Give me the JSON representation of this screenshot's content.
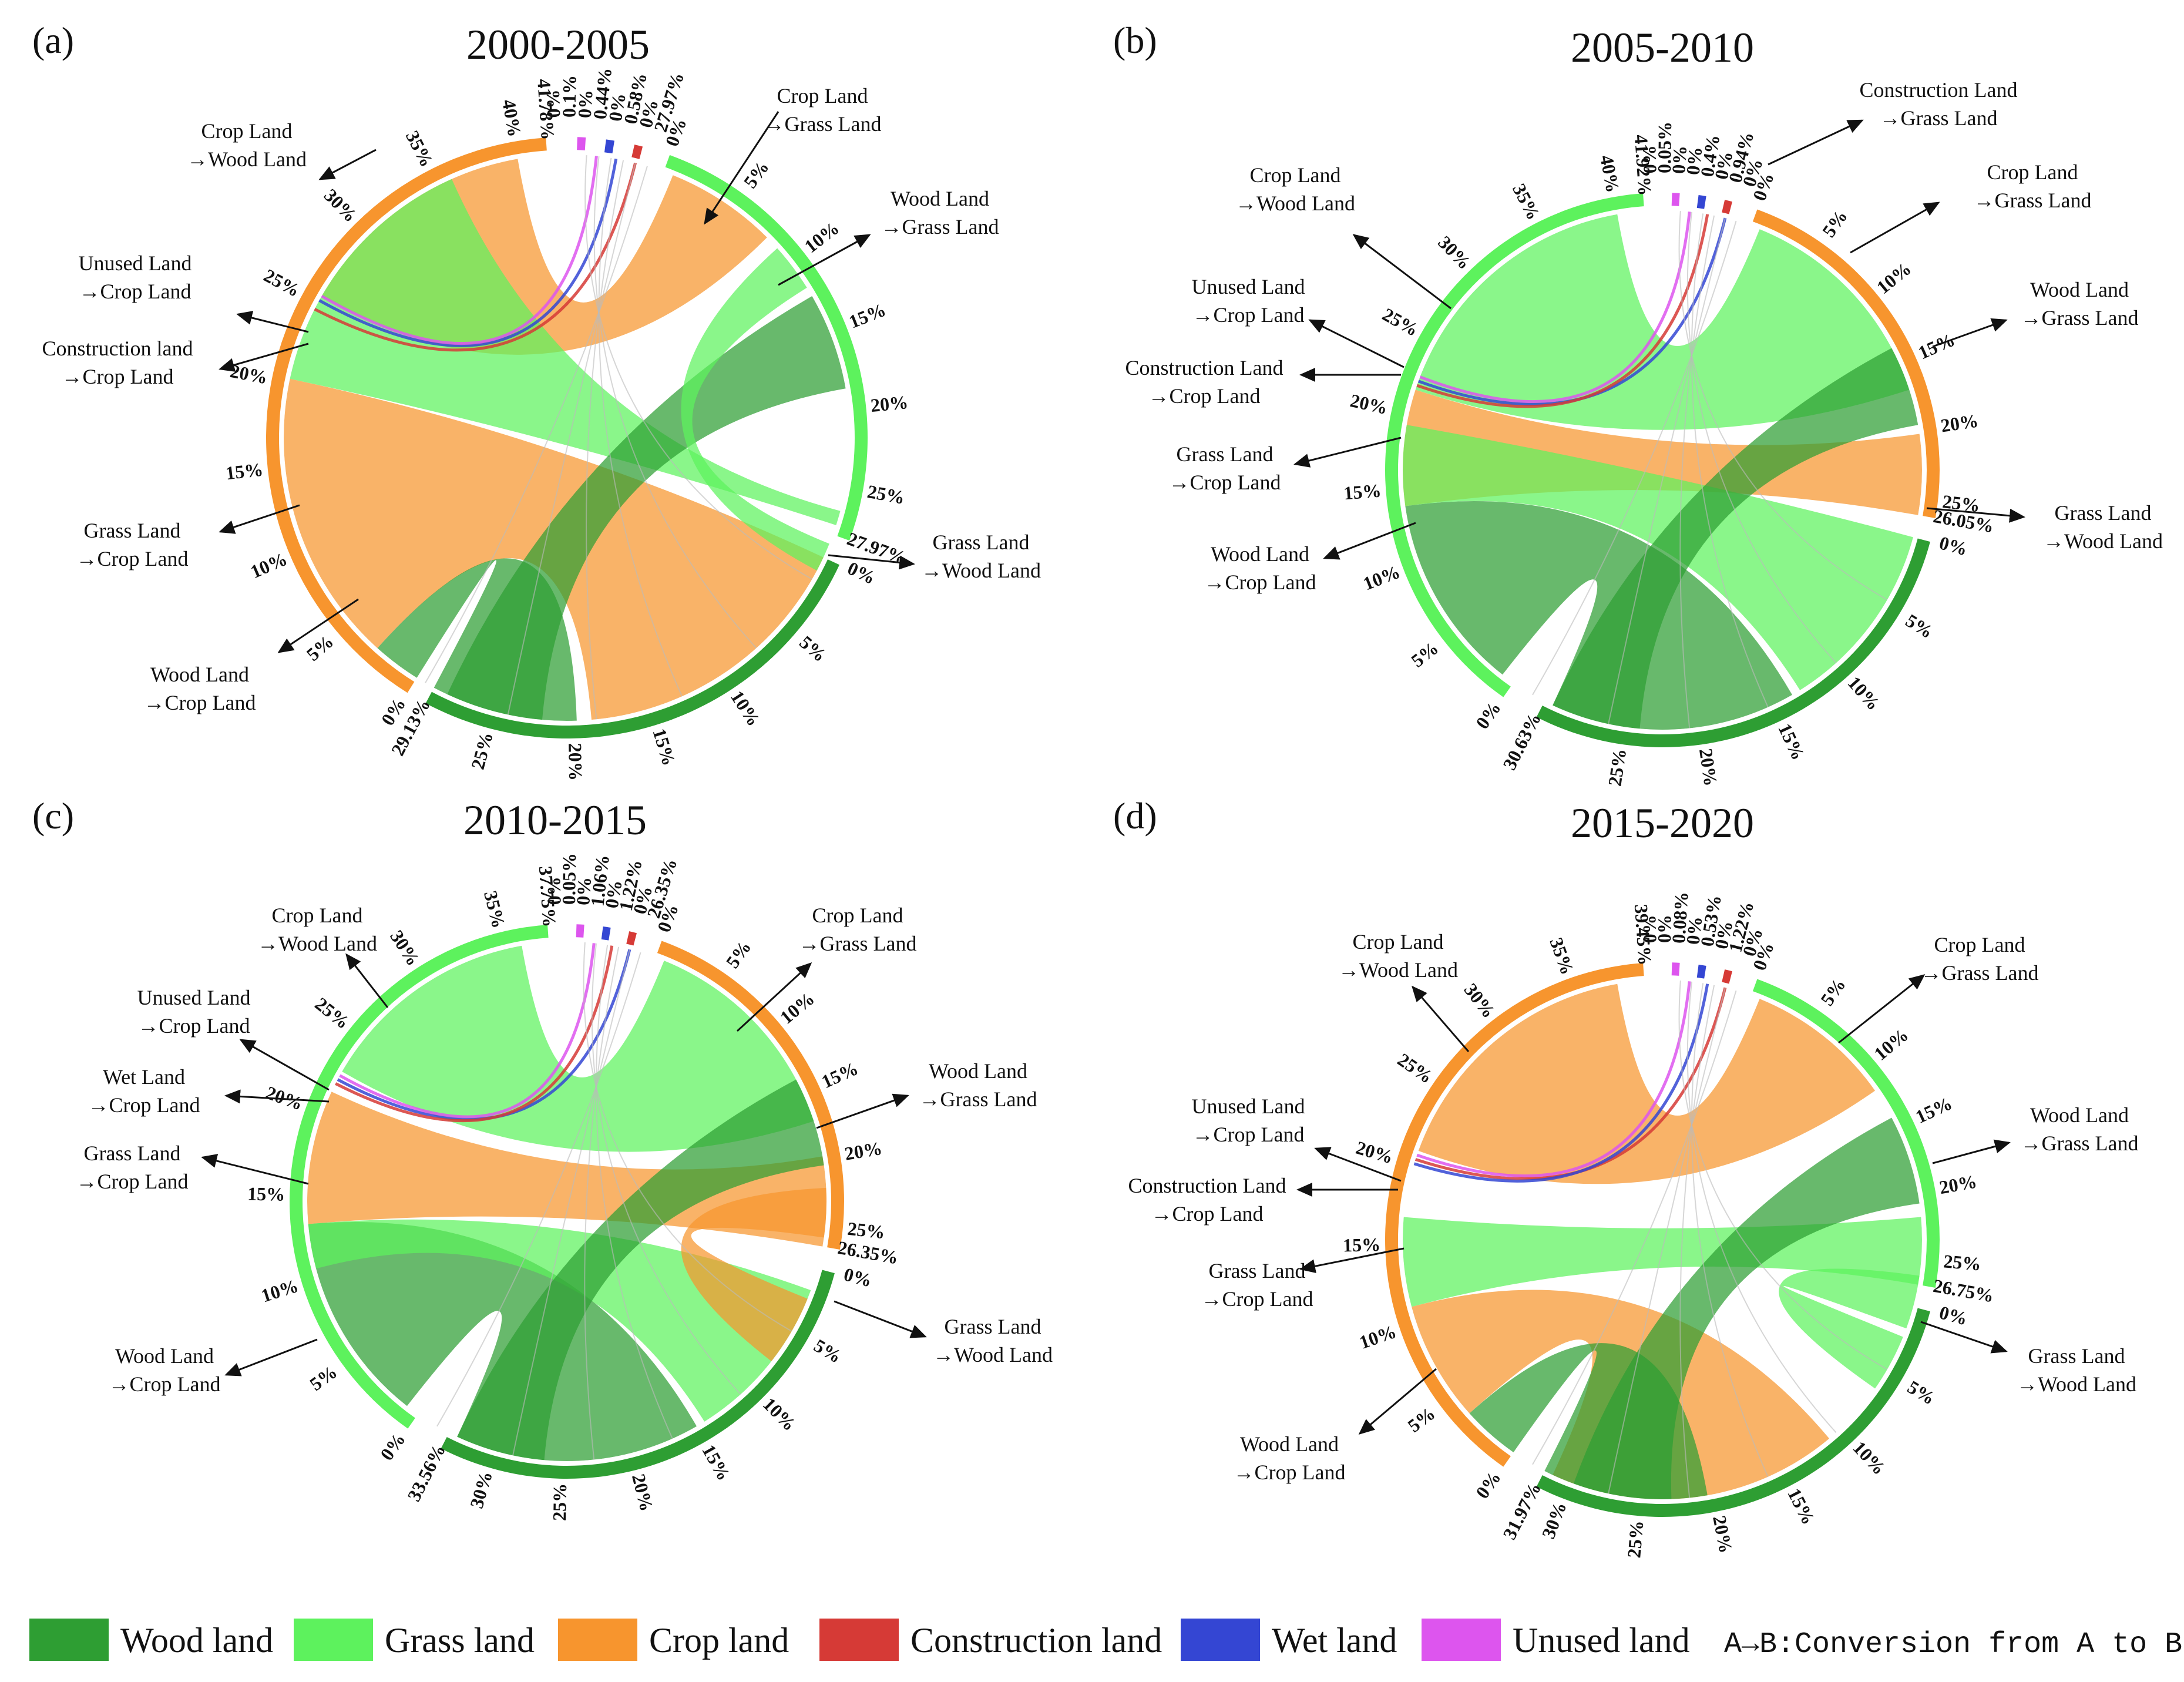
{
  "chart_data": [
    {
      "type": "chord",
      "panel_label": "(a)",
      "title": "2000-2005",
      "outer_segments": [
        {
          "category": "Crop land",
          "color": "#F7952E",
          "percent_span": [
            0,
            41.78
          ],
          "tick_labels": [
            "5%",
            "10%",
            "15%",
            "20%",
            "25%",
            "30%",
            "35%",
            "40%"
          ],
          "end_label": "41.78%"
        },
        {
          "category": "Wood land",
          "color": "#2E9E33",
          "percent_span": [
            0,
            29.13
          ],
          "tick_labels": [
            "5%",
            "10%",
            "15%",
            "20%",
            "25%"
          ],
          "end_label": "29.13%"
        },
        {
          "category": "Grass land",
          "color": "#5DF25D",
          "percent_span": [
            0,
            27.97
          ],
          "tick_labels": [
            "5%",
            "10%",
            "15%",
            "20%",
            "25%"
          ],
          "end_label": "27.97%"
        }
      ],
      "small_segment_labels": [
        "0%",
        "0.1%",
        "0%",
        "0.44%",
        "0%",
        "0.58%",
        "0%",
        "27.97%"
      ],
      "flows": [
        {
          "from": "Crop Land",
          "to": "Wood Land",
          "label": "Crop Land\n→Wood Land"
        },
        {
          "from": "Crop Land",
          "to": "Grass Land",
          "label": "Crop Land\n→Grass Land"
        },
        {
          "from": "Unused Land",
          "to": "Crop Land",
          "label": "Unused Land\n→Crop Land"
        },
        {
          "from": "Construction land",
          "to": "Crop Land",
          "label": "Construction land\n→Crop Land"
        },
        {
          "from": "Grass Land",
          "to": "Crop Land",
          "label": "Grass Land\n→Crop Land"
        },
        {
          "from": "Wood Land",
          "to": "Crop Land",
          "label": "Wood Land\n→Crop Land"
        },
        {
          "from": "Wood Land",
          "to": "Grass Land",
          "label": "Wood Land\n→Grass Land"
        },
        {
          "from": "Grass Land",
          "to": "Wood Land",
          "label": "Grass Land\n→Wood Land"
        }
      ]
    },
    {
      "type": "chord",
      "panel_label": "(b)",
      "title": "2005-2010",
      "outer_segments": [
        {
          "category": "Grass land",
          "color": "#5DF25D",
          "percent_span": [
            0,
            41.92
          ],
          "tick_labels": [
            "5%",
            "10%",
            "15%",
            "20%",
            "25%",
            "30%",
            "35%",
            "40%"
          ],
          "end_label": "41.92%"
        },
        {
          "category": "Wood land",
          "color": "#2E9E33",
          "percent_span": [
            0,
            30.63
          ],
          "tick_labels": [
            "5%",
            "10%",
            "15%",
            "20%",
            "25%"
          ],
          "end_label": "30.63%"
        },
        {
          "category": "Crop land",
          "color": "#F7952E",
          "percent_span": [
            0,
            26.05
          ],
          "tick_labels": [
            "5%",
            "10%",
            "15%",
            "20%",
            "25%"
          ],
          "end_label": "26.05%"
        }
      ],
      "small_segment_labels": [
        "0%",
        "0.05%",
        "0%",
        "0%",
        "0.4%",
        "0%",
        "0.94%",
        "0%"
      ],
      "flows": [
        {
          "from": "Crop Land",
          "to": "Wood Land",
          "label": "Crop Land\n→Wood Land"
        },
        {
          "from": "Construction Land",
          "to": "Grass Land",
          "label": "Construction Land\n→Grass Land"
        },
        {
          "from": "Crop Land",
          "to": "Grass Land",
          "label": "Crop Land\n→Grass Land"
        },
        {
          "from": "Unused Land",
          "to": "Crop Land",
          "label": "Unused Land\n→Crop Land"
        },
        {
          "from": "Construction Land",
          "to": "Crop Land",
          "label": "Construction Land\n→Crop Land"
        },
        {
          "from": "Grass Land",
          "to": "Crop Land",
          "label": "Grass Land\n→Crop Land"
        },
        {
          "from": "Wood Land",
          "to": "Crop Land",
          "label": "Wood Land\n→Crop Land"
        },
        {
          "from": "Wood Land",
          "to": "Grass Land",
          "label": "Wood Land\n→Grass Land"
        },
        {
          "from": "Grass Land",
          "to": "Wood Land",
          "label": "Grass Land\n→Wood Land"
        }
      ]
    },
    {
      "type": "chord",
      "panel_label": "(c)",
      "title": "2010-2015",
      "outer_segments": [
        {
          "category": "Grass land",
          "color": "#5DF25D",
          "percent_span": [
            0,
            37.75
          ],
          "tick_labels": [
            "5%",
            "10%",
            "15%",
            "20%",
            "25%",
            "30%",
            "35%"
          ],
          "end_label": "37.75%"
        },
        {
          "category": "Wood land",
          "color": "#2E9E33",
          "percent_span": [
            0,
            33.56
          ],
          "tick_labels": [
            "5%",
            "10%",
            "15%",
            "20%",
            "25%",
            "30%"
          ],
          "end_label": "33.56%"
        },
        {
          "category": "Crop land",
          "color": "#F7952E",
          "percent_span": [
            0,
            26.35
          ],
          "tick_labels": [
            "5%",
            "10%",
            "15%",
            "20%",
            "25%"
          ],
          "end_label": "26.35%"
        }
      ],
      "small_segment_labels": [
        "0%",
        "0.05%",
        "0%",
        "1.06%",
        "0%",
        "1.22%",
        "0%",
        "26.35%"
      ],
      "flows": [
        {
          "from": "Crop Land",
          "to": "Wood Land",
          "label": "Crop Land\n→Wood Land"
        },
        {
          "from": "Crop Land",
          "to": "Grass Land",
          "label": "Crop Land\n→Grass Land"
        },
        {
          "from": "Unused Land",
          "to": "Crop Land",
          "label": "Unused Land\n→Crop Land"
        },
        {
          "from": "Wet Land",
          "to": "Crop Land",
          "label": "Wet Land\n→Crop Land"
        },
        {
          "from": "Grass Land",
          "to": "Crop Land",
          "label": "Grass Land\n→Crop Land"
        },
        {
          "from": "Wood Land",
          "to": "Crop Land",
          "label": "Wood Land\n→Crop Land"
        },
        {
          "from": "Wood Land",
          "to": "Grass Land",
          "label": "Wood Land\n→Grass Land"
        },
        {
          "from": "Grass Land",
          "to": "Wood Land",
          "label": "Grass Land\n→Wood Land"
        }
      ]
    },
    {
      "type": "chord",
      "panel_label": "(d)",
      "title": "2015-2020",
      "outer_segments": [
        {
          "category": "Crop land",
          "color": "#F7952E",
          "percent_span": [
            0,
            39.45
          ],
          "tick_labels": [
            "5%",
            "10%",
            "15%",
            "20%",
            "25%",
            "30%",
            "35%"
          ],
          "end_label": "39.45%"
        },
        {
          "category": "Wood land",
          "color": "#2E9E33",
          "percent_span": [
            0,
            31.97
          ],
          "tick_labels": [
            "5%",
            "10%",
            "15%",
            "20%",
            "25%",
            "30%"
          ],
          "end_label": "31.97%"
        },
        {
          "category": "Grass land",
          "color": "#5DF25D",
          "percent_span": [
            0,
            26.75
          ],
          "tick_labels": [
            "5%",
            "10%",
            "15%",
            "20%",
            "25%"
          ],
          "end_label": "26.75%"
        }
      ],
      "small_segment_labels": [
        "0%",
        "0%",
        "0.08%",
        "0%",
        "0.53%",
        "0%",
        "1.22%",
        "0%"
      ],
      "flows": [
        {
          "from": "Crop Land",
          "to": "Wood Land",
          "label": "Crop Land\n→Wood Land"
        },
        {
          "from": "Crop Land",
          "to": "Grass Land",
          "label": "Crop Land\n→Grass Land"
        },
        {
          "from": "Unused Land",
          "to": "Crop Land",
          "label": "Unused Land\n→Crop Land"
        },
        {
          "from": "Construction Land",
          "to": "Crop Land",
          "label": "Construction Land\n→Crop Land"
        },
        {
          "from": "Grass Land",
          "to": "Crop Land",
          "label": "Grass Land\n→Crop Land"
        },
        {
          "from": "Wood Land",
          "to": "Crop Land",
          "label": "Wood Land\n→Crop Land"
        },
        {
          "from": "Wood Land",
          "to": "Grass Land",
          "label": "Wood Land\n→Grass Land"
        },
        {
          "from": "Grass Land",
          "to": "Wood Land",
          "label": "Grass Land\n→Wood Land"
        }
      ]
    }
  ],
  "legend": {
    "items": [
      {
        "label": "Wood land",
        "color": "#2E9E33"
      },
      {
        "label": "Grass land",
        "color": "#5DF25D"
      },
      {
        "label": "Crop land",
        "color": "#F7952E"
      },
      {
        "label": "Construction land",
        "color": "#D63A36"
      },
      {
        "label": "Wet land",
        "color": "#3446D3"
      },
      {
        "label": "Unused land",
        "color": "#DD55EE"
      }
    ],
    "note": "A→B:Conversion from A to B"
  }
}
